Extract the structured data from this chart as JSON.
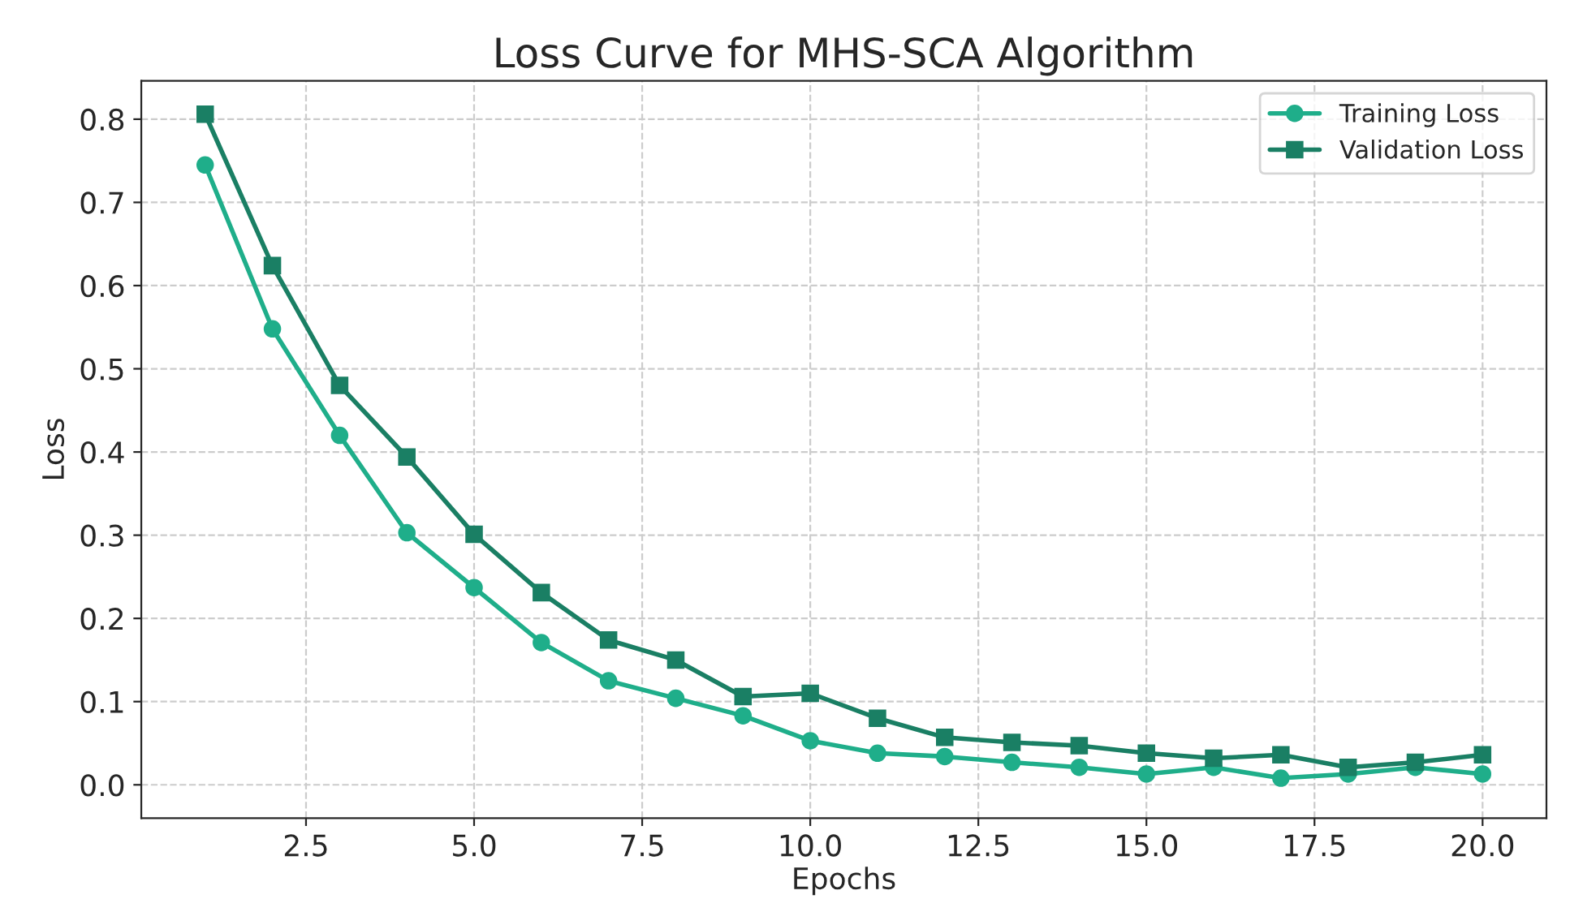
{
  "chart_data": {
    "type": "line",
    "title": "Loss Curve for MHS-SCA Algorithm",
    "xlabel": "Epochs",
    "ylabel": "Loss",
    "x": [
      1,
      2,
      3,
      4,
      5,
      6,
      7,
      8,
      9,
      10,
      11,
      12,
      13,
      14,
      15,
      16,
      17,
      18,
      19,
      20
    ],
    "series": [
      {
        "name": "Training Loss",
        "color": "#1fae8a",
        "marker": "circle",
        "values": [
          0.745,
          0.548,
          0.42,
          0.303,
          0.237,
          0.171,
          0.125,
          0.104,
          0.083,
          0.053,
          0.038,
          0.034,
          0.027,
          0.021,
          0.013,
          0.021,
          0.008,
          0.013,
          0.021,
          0.013
        ]
      },
      {
        "name": "Validation Loss",
        "color": "#1a7f64",
        "marker": "square",
        "values": [
          0.806,
          0.624,
          0.48,
          0.394,
          0.301,
          0.231,
          0.174,
          0.15,
          0.106,
          0.11,
          0.08,
          0.057,
          0.051,
          0.047,
          0.038,
          0.032,
          0.036,
          0.021,
          0.027,
          0.036
        ]
      }
    ],
    "xlim": [
      0.05,
      20.95
    ],
    "ylim": [
      -0.04,
      0.846
    ],
    "xticks": [
      {
        "value": 2.5,
        "label": "2.5"
      },
      {
        "value": 5,
        "label": "5.0"
      },
      {
        "value": 7.5,
        "label": "7.5"
      },
      {
        "value": 10,
        "label": "10.0"
      },
      {
        "value": 12.5,
        "label": "12.5"
      },
      {
        "value": 15,
        "label": "15.0"
      },
      {
        "value": 17.5,
        "label": "17.5"
      },
      {
        "value": 20,
        "label": "20.0"
      }
    ],
    "yticks": [
      {
        "value": 0,
        "label": "0.0"
      },
      0.1,
      0.2,
      0.3,
      0.4,
      0.5,
      0.6,
      0.7,
      0.8
    ],
    "grid": true,
    "legend": "top right",
    "line_style": "solid"
  }
}
